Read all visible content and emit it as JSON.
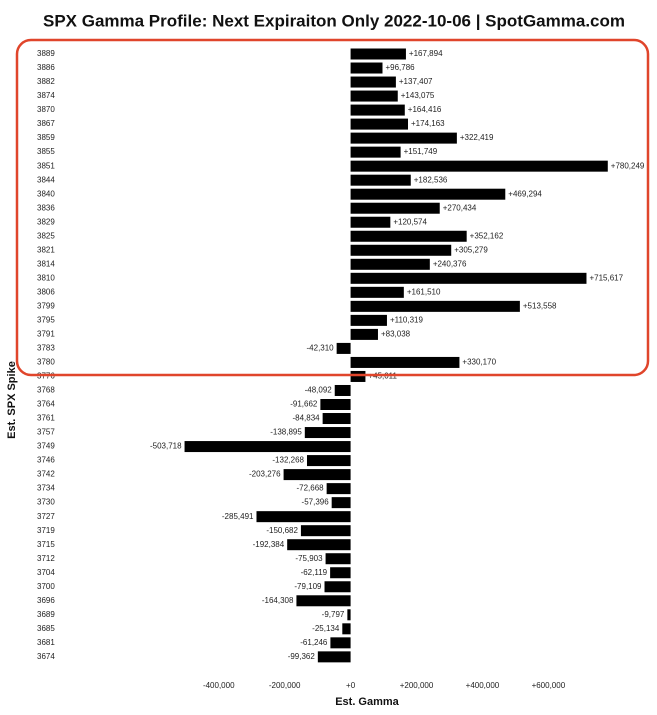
{
  "chart_data": {
    "type": "bar",
    "orientation": "horizontal",
    "title": "SPX Gamma Profile: Next Expiraiton Only 2022-10-06 | SpotGamma.com",
    "x_label": "Est. Gamma",
    "y_label": "Est. SPX Spike",
    "categories": [
      "3889",
      "3886",
      "3882",
      "3874",
      "3870",
      "3867",
      "3859",
      "3855",
      "3851",
      "3844",
      "3840",
      "3836",
      "3829",
      "3825",
      "3821",
      "3814",
      "3810",
      "3806",
      "3799",
      "3795",
      "3791",
      "3783",
      "3780",
      "3776",
      "3768",
      "3764",
      "3761",
      "3757",
      "3749",
      "3746",
      "3742",
      "3734",
      "3730",
      "3727",
      "3719",
      "3715",
      "3712",
      "3704",
      "3700",
      "3696",
      "3689",
      "3685",
      "3681",
      "3674"
    ],
    "values": [
      167894,
      96786,
      137407,
      143075,
      164416,
      174163,
      322419,
      151749,
      780249,
      182536,
      469294,
      270434,
      120574,
      352162,
      305279,
      240376,
      715617,
      161510,
      513558,
      110319,
      83038,
      -42310,
      330170,
      45011,
      -48092,
      -91662,
      -84834,
      -138895,
      -503718,
      -132268,
      -203276,
      -72668,
      -57396,
      -285491,
      -150682,
      -192384,
      -75903,
      -62119,
      -79109,
      -164308,
      -9797,
      -25134,
      -61246,
      -99362
    ],
    "value_labels": [
      "+167,894",
      "+96,786",
      "+137,407",
      "+143,075",
      "+164,416",
      "+174,163",
      "+322,419",
      "+151,749",
      "+780,249",
      "+182,536",
      "+469,294",
      "+270,434",
      "+120,574",
      "+352,162",
      "+305,279",
      "+240,376",
      "+715,617",
      "+161,510",
      "+513,558",
      "+110,319",
      "+83,038",
      "-42,310",
      "+330,170",
      "+45,011",
      "-48,092",
      "-91,662",
      "-84,834",
      "-138,895",
      "-503,718",
      "-132,268",
      "-203,276",
      "-72,668",
      "-57,396",
      "-285,491",
      "-150,682",
      "-192,384",
      "-75,903",
      "-62,119",
      "-79,109",
      "-164,308",
      "-9,797",
      "-25,134",
      "-61,246",
      "-99,362"
    ],
    "color": "#000000",
    "xlim": [
      -560000,
      790000
    ],
    "xticks": [
      {
        "value": -400000,
        "label": "-400,000"
      },
      {
        "value": -200000,
        "label": "-200,000"
      },
      {
        "value": 0,
        "label": "+0"
      },
      {
        "value": 200000,
        "label": "+200,000"
      },
      {
        "value": 400000,
        "label": "+400,000"
      },
      {
        "value": 600000,
        "label": "+600,000"
      }
    ],
    "grid": false
  }
}
